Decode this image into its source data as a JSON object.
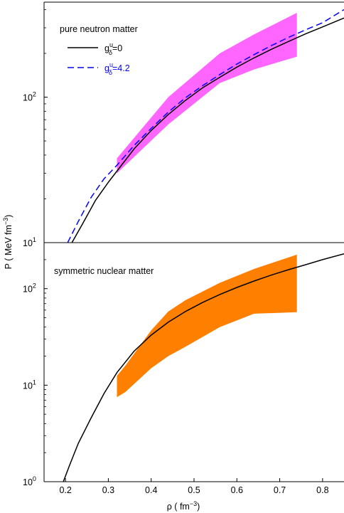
{
  "chart_data": [
    {
      "type": "area",
      "panel": "top",
      "annotation": "pure neutron matter",
      "yscale": "log",
      "ylim": [
        10,
        450
      ],
      "xlim": [
        0.15,
        0.85
      ],
      "yticks": [
        {
          "value": 100,
          "base": "10",
          "exp": "2"
        },
        {
          "value": 10,
          "base": "10",
          "exp": "1"
        }
      ],
      "legend": [
        {
          "name": "g",
          "sup": "u",
          "sub": "δ",
          "rest": "=0",
          "color": "#000000",
          "style": "solid"
        },
        {
          "name": "g",
          "sup": "u",
          "sub": "δ",
          "rest": "=4.2",
          "color": "#0000ff",
          "style": "dashed"
        }
      ],
      "band": {
        "color": "#ff66ff",
        "x": [
          0.32,
          0.44,
          0.56,
          0.64,
          0.74
        ],
        "upper": [
          38,
          100,
          200,
          270,
          380
        ],
        "lower": [
          30,
          65,
          125,
          155,
          190
        ]
      },
      "series": [
        {
          "color": "#000000",
          "style": "solid",
          "x": [
            0.215,
            0.24,
            0.27,
            0.3,
            0.32,
            0.36,
            0.4,
            0.44,
            0.48,
            0.52,
            0.56,
            0.6,
            0.64,
            0.68,
            0.72,
            0.76,
            0.8,
            0.85
          ],
          "y": [
            10,
            13.5,
            19.5,
            26,
            31,
            44,
            59,
            76,
            95,
            116,
            137,
            161,
            186,
            213,
            241,
            272,
            304,
            350
          ]
        },
        {
          "color": "#0000ff",
          "style": "dashed",
          "x": [
            0.205,
            0.23,
            0.26,
            0.29,
            0.32,
            0.36,
            0.4,
            0.44,
            0.48,
            0.52,
            0.56,
            0.6,
            0.64,
            0.68,
            0.72,
            0.76,
            0.8,
            0.85
          ],
          "y": [
            10,
            14,
            20.5,
            27.5,
            34,
            46.5,
            61,
            79,
            99,
            120,
            143,
            169,
            196,
            226,
            257,
            290,
            325,
            400
          ]
        }
      ]
    },
    {
      "type": "area",
      "panel": "bottom",
      "annotation": "symmetric nuclear matter",
      "yscale": "log",
      "ylim": [
        1,
        300
      ],
      "xlim": [
        0.15,
        0.85
      ],
      "xticks": [
        "0.2",
        "0.3",
        "0.4",
        "0.5",
        "0.6",
        "0.7",
        "0.8"
      ],
      "xtick_values": [
        0.2,
        0.3,
        0.4,
        0.5,
        0.6,
        0.7,
        0.8
      ],
      "yticks": [
        {
          "value": 100,
          "base": "10",
          "exp": "2"
        },
        {
          "value": 10,
          "base": "10",
          "exp": "1"
        },
        {
          "value": 1,
          "base": "10",
          "exp": "0"
        }
      ],
      "band": {
        "color": "#ff8000",
        "x": [
          0.32,
          0.34,
          0.4,
          0.44,
          0.48,
          0.56,
          0.64,
          0.74
        ],
        "upper": [
          12.5,
          16,
          37,
          58,
          76,
          115,
          160,
          225
        ],
        "lower": [
          7.5,
          8.5,
          15,
          20,
          25,
          40,
          55,
          57
        ]
      },
      "series": [
        {
          "color": "#000000",
          "style": "solid",
          "x": [
            0.195,
            0.21,
            0.23,
            0.26,
            0.29,
            0.32,
            0.36,
            0.4,
            0.44,
            0.48,
            0.52,
            0.56,
            0.6,
            0.64,
            0.68,
            0.72,
            0.76,
            0.8,
            0.85
          ],
          "y": [
            1.0,
            1.5,
            2.5,
            4.6,
            8.2,
            13.5,
            22.5,
            33,
            45,
            58,
            72,
            87,
            103,
            120,
            138,
            157,
            177,
            200,
            230
          ]
        }
      ]
    }
  ],
  "axes": {
    "ylabel_main": "P ( MeV fm",
    "ylabel_sup": "−3",
    "ylabel_close": ")",
    "xlabel_main": "ρ ( fm",
    "xlabel_sup": "−3",
    "xlabel_close": ")"
  }
}
